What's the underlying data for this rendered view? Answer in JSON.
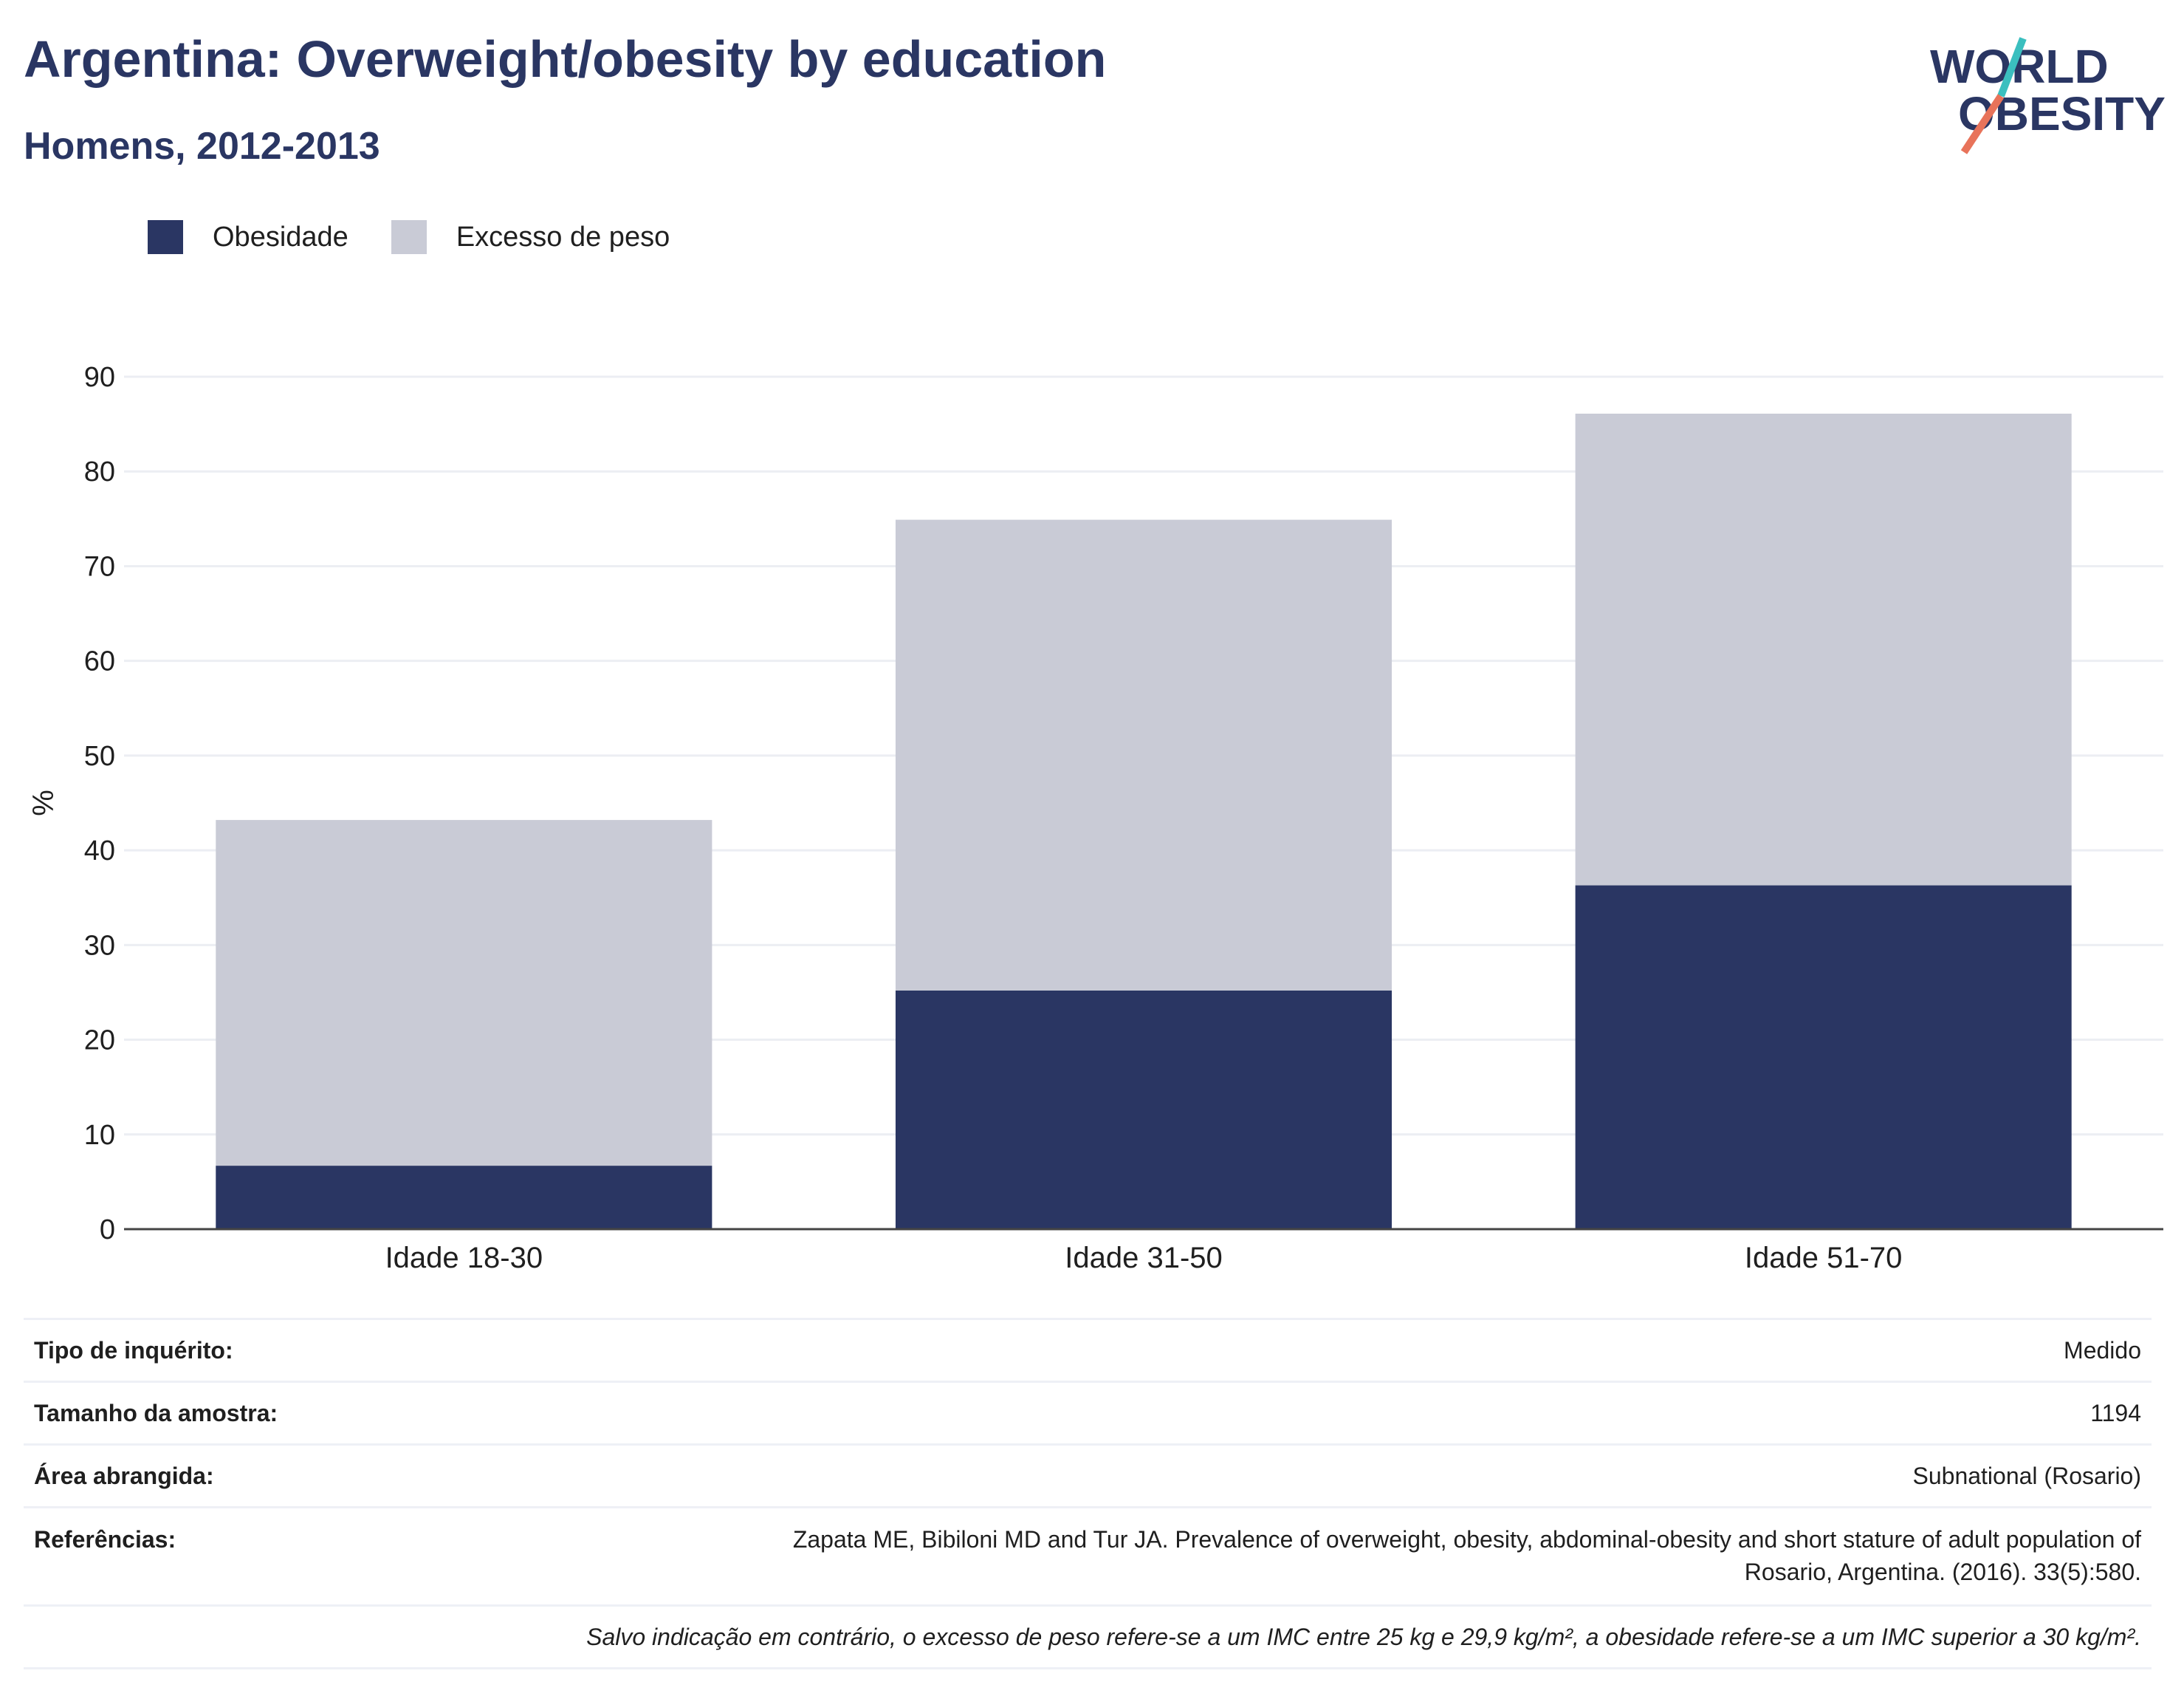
{
  "header": {
    "title": "Argentina: Overweight/obesity by education",
    "subtitle": "Homens, 2012-2013"
  },
  "logo": {
    "line1": "WORLD",
    "line2": "OBESITY",
    "colors": {
      "text": "#2a3663",
      "slash_top": "#3bbfbf",
      "slash_bottom": "#e8735a"
    }
  },
  "legend": [
    {
      "label": "Obesidade",
      "color": "#2a3663"
    },
    {
      "label": "Excesso de peso",
      "color": "#c9cbd6"
    }
  ],
  "chart_data": {
    "type": "bar",
    "stacked": true,
    "categories": [
      "Idade 18-30",
      "Idade 31-50",
      "Idade 51-70"
    ],
    "series": [
      {
        "name": "Obesidade",
        "color": "#2a3663",
        "values": [
          6.7,
          25.2,
          36.3
        ]
      },
      {
        "name": "Excesso de peso",
        "color": "#c9cbd6",
        "values": [
          36.5,
          49.7,
          49.8
        ]
      }
    ],
    "ylabel": "%",
    "ylim": [
      0,
      90
    ],
    "yticks": [
      0,
      10,
      20,
      30,
      40,
      50,
      60,
      70,
      80,
      90
    ],
    "grid": true,
    "legend_position": "top-left"
  },
  "info": {
    "rows": [
      {
        "label": "Tipo de inquérito:",
        "value": "Medido"
      },
      {
        "label": "Tamanho da amostra:",
        "value": "1194"
      },
      {
        "label": "Área abrangida:",
        "value": "Subnational (Rosario)"
      }
    ],
    "references_label": "Referências:",
    "references_line1": "Zapata ME, Bibiloni MD and Tur JA. Prevalence of overweight, obesity, abdominal-obesity and short stature of adult population of",
    "references_line2": "Rosario, Argentina. (2016). 33(5):580.",
    "note": "Salvo indicação em contrário, o excesso de peso refere-se a um IMC entre 25 kg e 29,9 kg/m², a obesidade refere-se a um IMC superior a 30 kg/m²."
  }
}
